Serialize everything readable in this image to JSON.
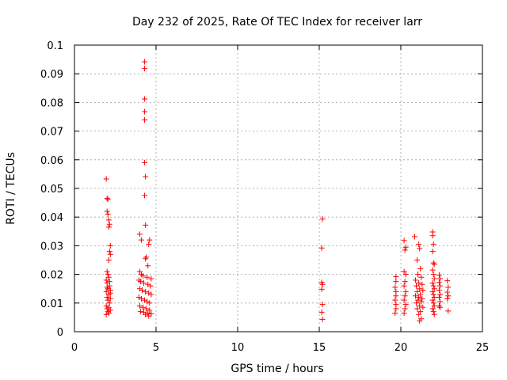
{
  "chart_data": {
    "type": "scatter",
    "title": "Day 232 of 2025, Rate Of TEC Index for receiver larr",
    "xlabel": "GPS time / hours",
    "ylabel": "ROTI / TECUs",
    "xlim": [
      0,
      25
    ],
    "ylim": [
      0,
      0.1
    ],
    "x_ticks": [
      "0",
      "5",
      "10",
      "15",
      "20",
      "25"
    ],
    "y_ticks": [
      "0",
      "0.01",
      "0.02",
      "0.03",
      "0.04",
      "0.05",
      "0.06",
      "0.07",
      "0.08",
      "0.09",
      "0.1"
    ],
    "grid": true,
    "marker": "+",
    "color": "#ff0000",
    "series": [
      {
        "points": [
          [
            1.95,
            0.0533
          ],
          [
            2.0,
            0.0465
          ],
          [
            2.05,
            0.0462
          ],
          [
            2.0,
            0.042
          ],
          [
            2.05,
            0.041
          ],
          [
            2.1,
            0.039
          ],
          [
            2.15,
            0.0375
          ],
          [
            2.1,
            0.0365
          ],
          [
            2.2,
            0.03
          ],
          [
            2.15,
            0.028
          ],
          [
            2.2,
            0.027
          ],
          [
            2.1,
            0.025
          ],
          [
            2.0,
            0.021
          ],
          [
            2.05,
            0.02
          ],
          [
            2.1,
            0.019
          ],
          [
            1.95,
            0.018
          ],
          [
            2.0,
            0.017
          ],
          [
            2.15,
            0.016
          ],
          [
            2.05,
            0.015
          ],
          [
            2.2,
            0.0145
          ],
          [
            1.95,
            0.014
          ],
          [
            2.1,
            0.013
          ],
          [
            2.0,
            0.012
          ],
          [
            2.2,
            0.0115
          ],
          [
            2.05,
            0.011
          ],
          [
            2.15,
            0.01
          ],
          [
            1.95,
            0.009
          ],
          [
            2.1,
            0.0085
          ],
          [
            2.0,
            0.008
          ],
          [
            2.2,
            0.0075
          ],
          [
            2.05,
            0.007
          ],
          [
            1.95,
            0.006
          ],
          [
            2.1,
            0.0065
          ],
          [
            2.15,
            0.0175
          ],
          [
            2.0,
            0.0155
          ],
          [
            2.2,
            0.0135
          ],
          [
            4.3,
            0.0942
          ],
          [
            4.3,
            0.0918
          ],
          [
            4.3,
            0.0812
          ],
          [
            4.3,
            0.0768
          ],
          [
            4.3,
            0.0739
          ],
          [
            4.3,
            0.059
          ],
          [
            4.35,
            0.0541
          ],
          [
            4.3,
            0.0475
          ],
          [
            4.35,
            0.0372
          ],
          [
            4.0,
            0.034
          ],
          [
            4.1,
            0.032
          ],
          [
            4.6,
            0.032
          ],
          [
            4.55,
            0.0305
          ],
          [
            4.4,
            0.026
          ],
          [
            4.35,
            0.0255
          ],
          [
            4.5,
            0.023
          ],
          [
            4.0,
            0.021
          ],
          [
            4.1,
            0.02
          ],
          [
            4.2,
            0.0195
          ],
          [
            4.45,
            0.019
          ],
          [
            4.7,
            0.0185
          ],
          [
            3.95,
            0.018
          ],
          [
            4.05,
            0.0175
          ],
          [
            4.25,
            0.017
          ],
          [
            4.5,
            0.0165
          ],
          [
            4.65,
            0.016
          ],
          [
            4.0,
            0.015
          ],
          [
            4.15,
            0.0145
          ],
          [
            4.35,
            0.014
          ],
          [
            4.55,
            0.0135
          ],
          [
            4.7,
            0.013
          ],
          [
            3.95,
            0.012
          ],
          [
            4.1,
            0.0115
          ],
          [
            4.3,
            0.011
          ],
          [
            4.45,
            0.0105
          ],
          [
            4.6,
            0.01
          ],
          [
            4.0,
            0.009
          ],
          [
            4.2,
            0.0085
          ],
          [
            4.4,
            0.008
          ],
          [
            4.6,
            0.0075
          ],
          [
            4.05,
            0.007
          ],
          [
            4.25,
            0.0068
          ],
          [
            4.5,
            0.0065
          ],
          [
            4.7,
            0.0062
          ],
          [
            4.35,
            0.006
          ],
          [
            4.55,
            0.0055
          ],
          [
            15.2,
            0.0393
          ],
          [
            15.15,
            0.0292
          ],
          [
            15.15,
            0.0172
          ],
          [
            15.2,
            0.0165
          ],
          [
            15.15,
            0.0148
          ],
          [
            15.2,
            0.0095
          ],
          [
            15.15,
            0.0068
          ],
          [
            15.2,
            0.0043
          ],
          [
            19.7,
            0.0192
          ],
          [
            19.7,
            0.0175
          ],
          [
            19.65,
            0.0155
          ],
          [
            19.7,
            0.014
          ],
          [
            19.7,
            0.0125
          ],
          [
            19.65,
            0.011
          ],
          [
            19.7,
            0.0095
          ],
          [
            19.7,
            0.008
          ],
          [
            19.65,
            0.0065
          ],
          [
            20.2,
            0.0318
          ],
          [
            20.3,
            0.0295
          ],
          [
            20.25,
            0.0285
          ],
          [
            20.2,
            0.021
          ],
          [
            20.3,
            0.02
          ],
          [
            20.25,
            0.0175
          ],
          [
            20.2,
            0.016
          ],
          [
            20.3,
            0.014
          ],
          [
            20.25,
            0.0125
          ],
          [
            20.2,
            0.011
          ],
          [
            20.3,
            0.0095
          ],
          [
            20.25,
            0.008
          ],
          [
            20.2,
            0.0065
          ],
          [
            20.85,
            0.0332
          ],
          [
            21.1,
            0.0305
          ],
          [
            21.15,
            0.029
          ],
          [
            21.0,
            0.025
          ],
          [
            21.2,
            0.022
          ],
          [
            21.05,
            0.02
          ],
          [
            21.25,
            0.019
          ],
          [
            20.9,
            0.018
          ],
          [
            21.1,
            0.017
          ],
          [
            21.3,
            0.0165
          ],
          [
            20.95,
            0.016
          ],
          [
            21.15,
            0.015
          ],
          [
            21.35,
            0.0145
          ],
          [
            21.0,
            0.014
          ],
          [
            21.2,
            0.013
          ],
          [
            20.9,
            0.0125
          ],
          [
            21.1,
            0.012
          ],
          [
            21.3,
            0.0115
          ],
          [
            21.05,
            0.011
          ],
          [
            21.25,
            0.0105
          ],
          [
            20.95,
            0.01
          ],
          [
            21.15,
            0.009
          ],
          [
            21.35,
            0.0085
          ],
          [
            21.0,
            0.008
          ],
          [
            21.2,
            0.007
          ],
          [
            21.1,
            0.006
          ],
          [
            21.25,
            0.0045
          ],
          [
            21.15,
            0.0038
          ],
          [
            21.95,
            0.0348
          ],
          [
            21.95,
            0.0335
          ],
          [
            22.0,
            0.0305
          ],
          [
            21.95,
            0.028
          ],
          [
            22.0,
            0.024
          ],
          [
            22.05,
            0.0235
          ],
          [
            21.95,
            0.0215
          ],
          [
            22.0,
            0.02
          ],
          [
            22.05,
            0.0185
          ],
          [
            21.95,
            0.017
          ],
          [
            22.0,
            0.016
          ],
          [
            22.05,
            0.015
          ],
          [
            21.95,
            0.014
          ],
          [
            22.0,
            0.013
          ],
          [
            22.05,
            0.012
          ],
          [
            21.95,
            0.011
          ],
          [
            22.0,
            0.01
          ],
          [
            22.05,
            0.009
          ],
          [
            21.95,
            0.008
          ],
          [
            22.0,
            0.007
          ],
          [
            22.05,
            0.006
          ],
          [
            22.35,
            0.0198
          ],
          [
            22.4,
            0.0185
          ],
          [
            22.35,
            0.0172
          ],
          [
            22.4,
            0.016
          ],
          [
            22.35,
            0.0145
          ],
          [
            22.4,
            0.013
          ],
          [
            22.35,
            0.012
          ],
          [
            22.4,
            0.0105
          ],
          [
            22.35,
            0.009
          ],
          [
            22.4,
            0.0085
          ],
          [
            22.85,
            0.0178
          ],
          [
            22.9,
            0.0155
          ],
          [
            22.85,
            0.0138
          ],
          [
            22.9,
            0.0125
          ],
          [
            22.85,
            0.0115
          ],
          [
            22.9,
            0.0072
          ]
        ]
      }
    ]
  }
}
